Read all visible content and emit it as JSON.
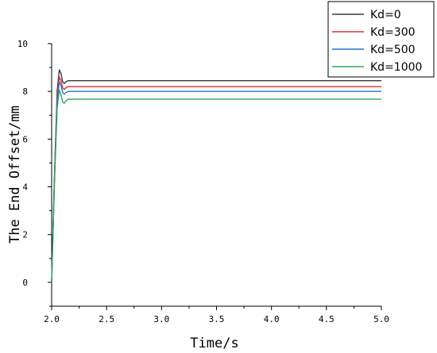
{
  "chart_data": {
    "type": "line",
    "title": "",
    "xlabel": "Time/s",
    "ylabel": "The End Offset/mm",
    "xlim": [
      2.0,
      5.0
    ],
    "ylim": [
      -1.0,
      10.0
    ],
    "xticks": [
      "2.0",
      "2.5",
      "3.0",
      "3.5",
      "4.0",
      "4.5",
      "5.0"
    ],
    "yticks": [
      "0",
      "2",
      "4",
      "6",
      "8",
      "10"
    ],
    "grid": false,
    "legend_position": "top-right",
    "series": [
      {
        "name": "Kd=0",
        "color": "#3a3a3a",
        "x": [
          2.0,
          2.025,
          2.05,
          2.07,
          2.085,
          2.1,
          2.115,
          2.13,
          2.15,
          2.18,
          5.0
        ],
        "y": [
          0.0,
          4.4,
          8.0,
          8.9,
          8.75,
          8.4,
          8.33,
          8.4,
          8.45,
          8.45,
          8.45
        ]
      },
      {
        "name": "Kd=300",
        "color": "#e03030",
        "x": [
          2.0,
          2.025,
          2.05,
          2.07,
          2.085,
          2.1,
          2.115,
          2.13,
          2.15,
          2.18,
          5.0
        ],
        "y": [
          0.0,
          4.3,
          7.8,
          8.6,
          8.45,
          8.15,
          8.08,
          8.15,
          8.2,
          8.2,
          8.2
        ]
      },
      {
        "name": "Kd=500",
        "color": "#2a6fd6",
        "x": [
          2.0,
          2.025,
          2.05,
          2.07,
          2.085,
          2.1,
          2.115,
          2.13,
          2.15,
          2.18,
          5.0
        ],
        "y": [
          0.0,
          4.2,
          7.6,
          8.4,
          8.25,
          7.95,
          7.88,
          7.95,
          8.0,
          8.0,
          8.0
        ]
      },
      {
        "name": "Kd=1000",
        "color": "#2aa85a",
        "x": [
          2.0,
          2.025,
          2.05,
          2.07,
          2.085,
          2.1,
          2.115,
          2.13,
          2.15,
          2.18,
          5.0
        ],
        "y": [
          0.0,
          4.1,
          7.3,
          8.05,
          7.85,
          7.55,
          7.5,
          7.6,
          7.67,
          7.67,
          7.67
        ]
      }
    ]
  }
}
